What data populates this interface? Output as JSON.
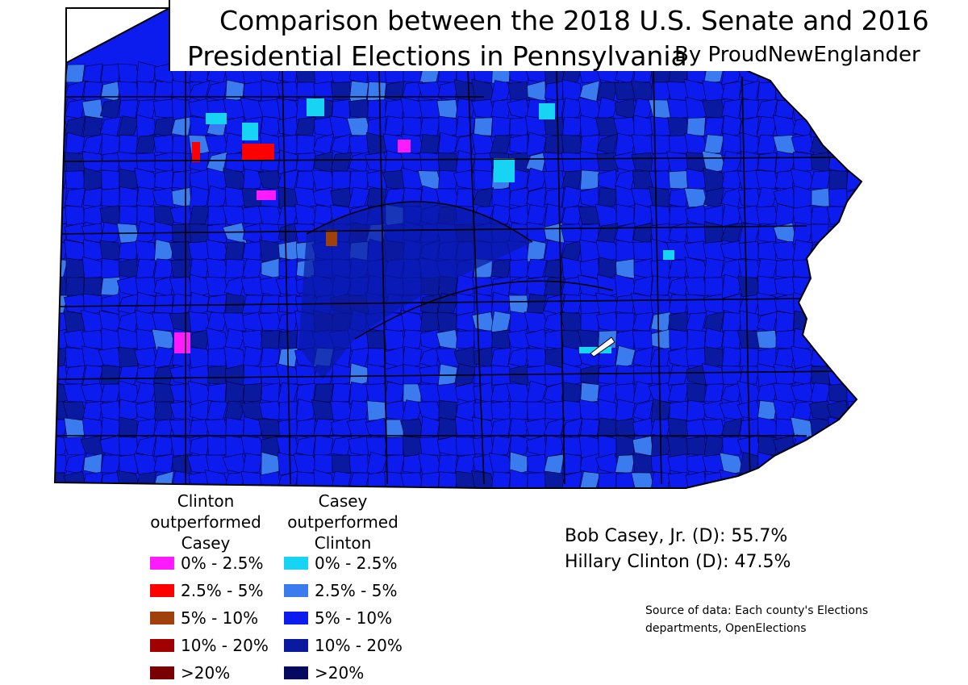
{
  "title_line1": "Comparison between the 2018 U.S. Senate and 2016",
  "title_line2": "Presidential Elections in Pennsylvania",
  "byline": "By ProudNewEnglander",
  "legend": {
    "clinton_heading": [
      "Clinton",
      "outperformed",
      "Casey"
    ],
    "casey_heading": [
      "Casey",
      "outperformed",
      "Clinton"
    ],
    "clinton_items": [
      {
        "label": "0% - 2.5%",
        "color": "#ff1aff"
      },
      {
        "label": "2.5% - 5%",
        "color": "#ff0000"
      },
      {
        "label": "5% - 10%",
        "color": "#a0400a"
      },
      {
        "label": "10% - 20%",
        "color": "#a00000"
      },
      {
        "label": ">20%",
        "color": "#780000"
      }
    ],
    "casey_items": [
      {
        "label": "0% - 2.5%",
        "color": "#18d4f4"
      },
      {
        "label": "2.5% - 5%",
        "color": "#3a7cf0"
      },
      {
        "label": "5% - 10%",
        "color": "#0c1cee"
      },
      {
        "label": "10% - 20%",
        "color": "#0a1aa0"
      },
      {
        "label": ">20%",
        "color": "#050a60"
      }
    ]
  },
  "results": {
    "casey": "Bob Casey, Jr. (D): 55.7%",
    "clinton": "Hillary Clinton (D): 47.5%"
  },
  "source": "Source of data: Each county's Elections departments, OpenElections",
  "map_colors": {
    "base": "#0c1cee",
    "dark": "#0a1aa0",
    "light": "#3a7cf0",
    "cyan": "#18d4f4",
    "magenta": "#ff1aff",
    "red": "#ff0000",
    "brown": "#a0400a",
    "county_line": "#000033"
  }
}
